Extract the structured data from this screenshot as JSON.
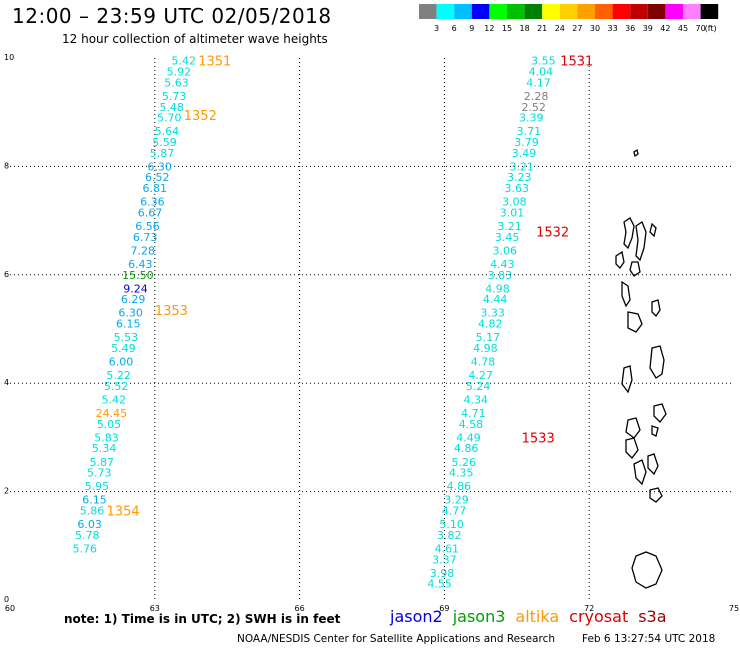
{
  "title": "12:00 – 23:59 UTC 02/05/2018",
  "subtitle": "12 hour collection of altimeter wave heights",
  "note": "note: 1) Time is in UTC; 2) SWH is in feet",
  "credit": "NOAA/NESDIS Center for Satellite Applications and Research",
  "timestamp": "Feb  6 13:27:54 UTC 2018",
  "satellites": [
    {
      "name": "jason2",
      "color": "#0000dd"
    },
    {
      "name": "jason3",
      "color": "#00a000"
    },
    {
      "name": "altika",
      "color": "#ff9900"
    },
    {
      "name": "cryosat",
      "color": "#dd0000"
    },
    {
      "name": "s3a",
      "color": "#990000"
    }
  ],
  "legend": {
    "unit": "(ft)",
    "bins": [
      {
        "label": "3",
        "color": "#808080"
      },
      {
        "label": "6",
        "color": "#00ffff"
      },
      {
        "label": "9",
        "color": "#00bfff"
      },
      {
        "label": "12",
        "color": "#0000ff"
      },
      {
        "label": "15",
        "color": "#00ff00"
      },
      {
        "label": "18",
        "color": "#00c000"
      },
      {
        "label": "21",
        "color": "#008000"
      },
      {
        "label": "24",
        "color": "#ffff00"
      },
      {
        "label": "27",
        "color": "#ffd000"
      },
      {
        "label": "30",
        "color": "#ffa000"
      },
      {
        "label": "33",
        "color": "#ff6000"
      },
      {
        "label": "36",
        "color": "#ff0000"
      },
      {
        "label": "39",
        "color": "#c00000"
      },
      {
        "label": "42",
        "color": "#800000"
      },
      {
        "label": "45",
        "color": "#ff00ff"
      },
      {
        "label": "70",
        "color": "#ff80ff"
      },
      {
        "label": "",
        "color": "#000000"
      }
    ]
  },
  "chart_data": {
    "type": "scatter",
    "xlim": [
      60,
      75
    ],
    "ylim": [
      0,
      10
    ],
    "xticks": [
      60,
      63,
      66,
      69,
      72,
      75
    ],
    "yticks": [
      0,
      2,
      4,
      6,
      8,
      10
    ],
    "grid": true,
    "pass_labels": [
      {
        "text": "1351",
        "x": 63.9,
        "y": 9.95,
        "color": "#ff9900"
      },
      {
        "text": "1352",
        "x": 63.6,
        "y": 8.95,
        "color": "#ff9900"
      },
      {
        "text": "1353",
        "x": 63.0,
        "y": 5.35,
        "color": "#ff9900"
      },
      {
        "text": "1354",
        "x": 62.0,
        "y": 1.65,
        "color": "#ff9900"
      },
      {
        "text": "1531",
        "x": 71.4,
        "y": 9.95,
        "color": "#dd0000"
      },
      {
        "text": "1532",
        "x": 70.9,
        "y": 6.8,
        "color": "#dd0000"
      },
      {
        "text": "1533",
        "x": 70.6,
        "y": 3.0,
        "color": "#dd0000"
      }
    ],
    "series": [
      {
        "name": "altika",
        "points": [
          {
            "x": 63.6,
            "y": 9.95,
            "v": "5.42",
            "c": "#00dddd"
          },
          {
            "x": 63.5,
            "y": 9.75,
            "v": "5.92",
            "c": "#00dddd"
          },
          {
            "x": 63.45,
            "y": 9.55,
            "v": "5.63",
            "c": "#00dddd"
          },
          {
            "x": 63.4,
            "y": 9.3,
            "v": "5.73",
            "c": "#00dddd"
          },
          {
            "x": 63.35,
            "y": 9.1,
            "v": "5.48",
            "c": "#00dddd"
          },
          {
            "x": 63.3,
            "y": 8.9,
            "v": "5.70",
            "c": "#00dddd"
          },
          {
            "x": 63.25,
            "y": 8.65,
            "v": "5.64",
            "c": "#00dddd"
          },
          {
            "x": 63.2,
            "y": 8.45,
            "v": "5.59",
            "c": "#00dddd"
          },
          {
            "x": 63.15,
            "y": 8.25,
            "v": "5.87",
            "c": "#00dddd"
          },
          {
            "x": 63.1,
            "y": 8.0,
            "v": "6.30",
            "c": "#00aaee"
          },
          {
            "x": 63.05,
            "y": 7.8,
            "v": "6.52",
            "c": "#00aaee"
          },
          {
            "x": 63.0,
            "y": 7.6,
            "v": "6.81",
            "c": "#00aaee"
          },
          {
            "x": 62.95,
            "y": 7.35,
            "v": "6.36",
            "c": "#00aaee"
          },
          {
            "x": 62.9,
            "y": 7.15,
            "v": "6.67",
            "c": "#00aaee"
          },
          {
            "x": 62.85,
            "y": 6.9,
            "v": "6.56",
            "c": "#00aaee"
          },
          {
            "x": 62.8,
            "y": 6.7,
            "v": "6.73",
            "c": "#00aaee"
          },
          {
            "x": 62.75,
            "y": 6.45,
            "v": "7.28",
            "c": "#00aaee"
          },
          {
            "x": 62.7,
            "y": 6.2,
            "v": "6.43",
            "c": "#00aaee"
          },
          {
            "x": 62.65,
            "y": 6.0,
            "v": "15.50",
            "c": "#00a000"
          },
          {
            "x": 62.6,
            "y": 5.75,
            "v": "9.24",
            "c": "#0000dd"
          },
          {
            "x": 62.55,
            "y": 5.55,
            "v": "6.29",
            "c": "#00aaee"
          },
          {
            "x": 62.5,
            "y": 5.3,
            "v": "6.30",
            "c": "#00aaee"
          },
          {
            "x": 62.45,
            "y": 5.1,
            "v": "6.15",
            "c": "#00aaee"
          },
          {
            "x": 62.4,
            "y": 4.85,
            "v": "5.53",
            "c": "#00dddd"
          },
          {
            "x": 62.35,
            "y": 4.65,
            "v": "5.49",
            "c": "#00dddd"
          },
          {
            "x": 62.3,
            "y": 4.4,
            "v": "6.00",
            "c": "#00aaee"
          },
          {
            "x": 62.25,
            "y": 4.15,
            "v": "5.22",
            "c": "#00dddd"
          },
          {
            "x": 62.2,
            "y": 3.95,
            "v": "5.52",
            "c": "#00dddd"
          },
          {
            "x": 62.15,
            "y": 3.7,
            "v": "5.42",
            "c": "#00dddd"
          },
          {
            "x": 62.1,
            "y": 3.45,
            "v": "24.45",
            "c": "#ff9900"
          },
          {
            "x": 62.05,
            "y": 3.25,
            "v": "5.05",
            "c": "#00dddd"
          },
          {
            "x": 62.0,
            "y": 3.0,
            "v": "5.83",
            "c": "#00dddd"
          },
          {
            "x": 61.95,
            "y": 2.8,
            "v": "5.34",
            "c": "#00dddd"
          },
          {
            "x": 61.9,
            "y": 2.55,
            "v": "5.87",
            "c": "#00dddd"
          },
          {
            "x": 61.85,
            "y": 2.35,
            "v": "5.73",
            "c": "#00dddd"
          },
          {
            "x": 61.8,
            "y": 2.1,
            "v": "5.95",
            "c": "#00dddd"
          },
          {
            "x": 61.75,
            "y": 1.85,
            "v": "6.15",
            "c": "#00aaee"
          },
          {
            "x": 61.7,
            "y": 1.65,
            "v": "5.86",
            "c": "#00dddd"
          },
          {
            "x": 61.65,
            "y": 1.4,
            "v": "6.03",
            "c": "#00aaee"
          },
          {
            "x": 61.6,
            "y": 1.2,
            "v": "5.78",
            "c": "#00dddd"
          },
          {
            "x": 61.55,
            "y": 0.95,
            "v": "5.76",
            "c": "#00dddd"
          }
        ]
      },
      {
        "name": "cryosat",
        "points": [
          {
            "x": 71.05,
            "y": 9.95,
            "v": "3.55",
            "c": "#00dddd"
          },
          {
            "x": 71.0,
            "y": 9.75,
            "v": "4.04",
            "c": "#00dddd"
          },
          {
            "x": 70.95,
            "y": 9.55,
            "v": "4.17",
            "c": "#00dddd"
          },
          {
            "x": 70.9,
            "y": 9.3,
            "v": "2.28",
            "c": "#808080"
          },
          {
            "x": 70.85,
            "y": 9.1,
            "v": "2.52",
            "c": "#808080"
          },
          {
            "x": 70.8,
            "y": 8.9,
            "v": "3.39",
            "c": "#00dddd"
          },
          {
            "x": 70.75,
            "y": 8.65,
            "v": "3.71",
            "c": "#00dddd"
          },
          {
            "x": 70.7,
            "y": 8.45,
            "v": "3.79",
            "c": "#00dddd"
          },
          {
            "x": 70.65,
            "y": 8.25,
            "v": "3.49",
            "c": "#00dddd"
          },
          {
            "x": 70.6,
            "y": 8.0,
            "v": "3.21",
            "c": "#00dddd"
          },
          {
            "x": 70.55,
            "y": 7.8,
            "v": "3.23",
            "c": "#00dddd"
          },
          {
            "x": 70.5,
            "y": 7.6,
            "v": "3.63",
            "c": "#00dddd"
          },
          {
            "x": 70.45,
            "y": 7.35,
            "v": "3.08",
            "c": "#00dddd"
          },
          {
            "x": 70.4,
            "y": 7.15,
            "v": "3.01",
            "c": "#00dddd"
          },
          {
            "x": 70.35,
            "y": 6.9,
            "v": "3.21",
            "c": "#00dddd"
          },
          {
            "x": 70.3,
            "y": 6.7,
            "v": "3.45",
            "c": "#00dddd"
          },
          {
            "x": 70.25,
            "y": 6.45,
            "v": "3.06",
            "c": "#00dddd"
          },
          {
            "x": 70.2,
            "y": 6.2,
            "v": "4.43",
            "c": "#00dddd"
          },
          {
            "x": 70.15,
            "y": 6.0,
            "v": "3.83",
            "c": "#00dddd"
          },
          {
            "x": 70.1,
            "y": 5.75,
            "v": "4.98",
            "c": "#00dddd"
          },
          {
            "x": 70.05,
            "y": 5.55,
            "v": "4.44",
            "c": "#00dddd"
          },
          {
            "x": 70.0,
            "y": 5.3,
            "v": "3.33",
            "c": "#00dddd"
          },
          {
            "x": 69.95,
            "y": 5.1,
            "v": "4.82",
            "c": "#00dddd"
          },
          {
            "x": 69.9,
            "y": 4.85,
            "v": "5.17",
            "c": "#00dddd"
          },
          {
            "x": 69.85,
            "y": 4.65,
            "v": "4.98",
            "c": "#00dddd"
          },
          {
            "x": 69.8,
            "y": 4.4,
            "v": "4.78",
            "c": "#00dddd"
          },
          {
            "x": 69.75,
            "y": 4.15,
            "v": "4.27",
            "c": "#00dddd"
          },
          {
            "x": 69.7,
            "y": 3.95,
            "v": "5.24",
            "c": "#00dddd"
          },
          {
            "x": 69.65,
            "y": 3.7,
            "v": "4.34",
            "c": "#00dddd"
          },
          {
            "x": 69.6,
            "y": 3.45,
            "v": "4.71",
            "c": "#00dddd"
          },
          {
            "x": 69.55,
            "y": 3.25,
            "v": "4.58",
            "c": "#00dddd"
          },
          {
            "x": 69.5,
            "y": 3.0,
            "v": "4.49",
            "c": "#00dddd"
          },
          {
            "x": 69.45,
            "y": 2.8,
            "v": "4.86",
            "c": "#00dddd"
          },
          {
            "x": 69.4,
            "y": 2.55,
            "v": "5.26",
            "c": "#00dddd"
          },
          {
            "x": 69.35,
            "y": 2.35,
            "v": "4.35",
            "c": "#00dddd"
          },
          {
            "x": 69.3,
            "y": 2.1,
            "v": "4.86",
            "c": "#00dddd"
          },
          {
            "x": 69.25,
            "y": 1.85,
            "v": "3.29",
            "c": "#00dddd"
          },
          {
            "x": 69.2,
            "y": 1.65,
            "v": "4.77",
            "c": "#00dddd"
          },
          {
            "x": 69.15,
            "y": 1.4,
            "v": "5.10",
            "c": "#00dddd"
          },
          {
            "x": 69.1,
            "y": 1.2,
            "v": "3.82",
            "c": "#00dddd"
          },
          {
            "x": 69.05,
            "y": 0.95,
            "v": "4.61",
            "c": "#00dddd"
          },
          {
            "x": 69.0,
            "y": 0.75,
            "v": "3.37",
            "c": "#00dddd"
          },
          {
            "x": 68.95,
            "y": 0.5,
            "v": "3.98",
            "c": "#00dddd"
          },
          {
            "x": 68.9,
            "y": 0.3,
            "v": "4.55",
            "c": "#00dddd"
          }
        ]
      }
    ]
  }
}
